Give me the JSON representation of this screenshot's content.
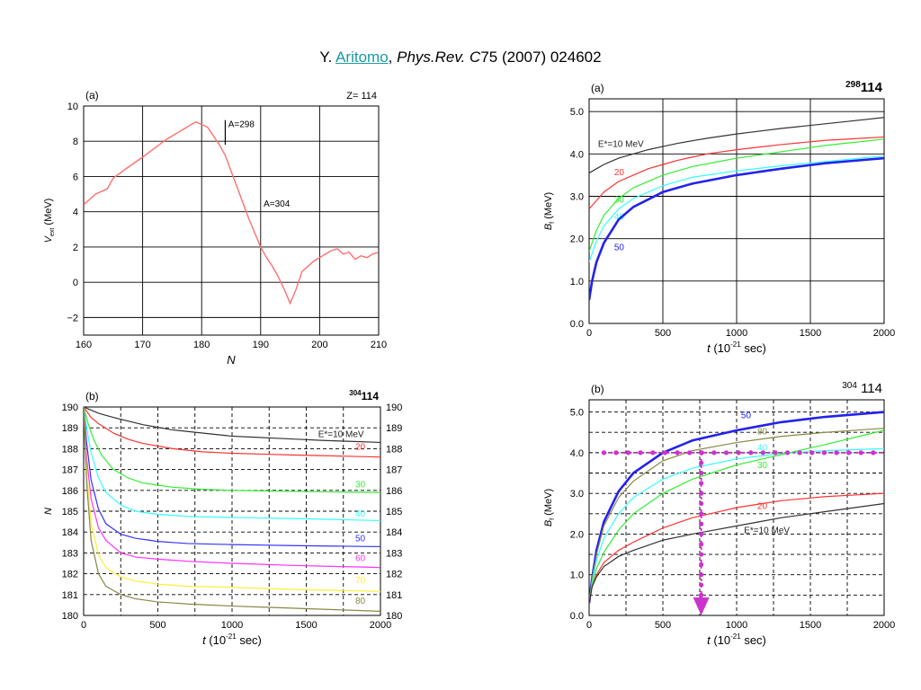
{
  "citation": {
    "prefix": "Y. ",
    "author": "Aritomo",
    "sep": ", ",
    "journal": "Phys.Rev. C",
    "rest": "75 (2007) 024602"
  },
  "panels": [
    {
      "name": "panel-a-vext",
      "tag": "(a)",
      "corner": "Z= 114",
      "corner_kind": "plain",
      "xlabel": "N",
      "ylabel_main": "V",
      "ylabel_sub": "ext",
      "ylabel_unit": "(MeV)",
      "xlim": [
        160,
        210
      ],
      "ylim": [
        -3,
        10
      ],
      "xticks": [
        160,
        170,
        180,
        190,
        200,
        210
      ],
      "yticks": [
        -2,
        0,
        2,
        4,
        6,
        8,
        10
      ],
      "ytick_decimals": 0,
      "grid_dashed": false,
      "annotations": [
        {
          "text": "A=298",
          "x": 184.5,
          "y": 8.8,
          "marker_x": 184,
          "marker_y": [
            7.8,
            9.2
          ]
        },
        {
          "text": "A=304",
          "x": 190.5,
          "y": 4.3
        }
      ]
    },
    {
      "name": "panel-b-neutron",
      "tag": "(b)",
      "corner_sup": "304",
      "corner_main": "114",
      "corner_kind": "nuclide",
      "xlabel": "t",
      "xlabel_unit": "(10",
      "xlabel_sup": "-21",
      "xlabel_tail": " sec)",
      "ylabel_main": "N",
      "xlim": [
        0,
        2000
      ],
      "ylim": [
        180,
        190
      ],
      "xticks": [
        0,
        500,
        1000,
        1500,
        2000
      ],
      "yticks": [
        180,
        181,
        182,
        183,
        184,
        185,
        186,
        187,
        188,
        189,
        190
      ],
      "ytick_decimals": 0,
      "grid_dashed": true,
      "right_axis": true
    },
    {
      "name": "panel-a-barrier-298",
      "tag": "(a)",
      "corner_sup": "298",
      "corner_main": "114",
      "corner_kind": "nuclide-bold",
      "xlabel": "t",
      "xlabel_unit": "(10",
      "xlabel_sup": "-21",
      "xlabel_tail": " sec)",
      "ylabel_main": "B",
      "ylabel_sub": "f",
      "ylabel_unit": "(MeV)",
      "xlim": [
        0,
        2000
      ],
      "ylim": [
        0,
        5.3
      ],
      "xticks": [
        0,
        500,
        1000,
        1500,
        2000
      ],
      "yticks": [
        0.0,
        1.0,
        2.0,
        3.0,
        4.0,
        5.0
      ],
      "ytick_decimals": 1,
      "grid_dashed": false
    },
    {
      "name": "panel-b-barrier-304",
      "tag": "(b)",
      "corner_sup": "304",
      "corner_main": " 114",
      "corner_kind": "nuclide-serif",
      "xlabel": "t",
      "xlabel_unit": "(10",
      "xlabel_sup": "-21",
      "xlabel_tail": " sec)",
      "ylabel_main": "B",
      "ylabel_sub": "f",
      "ylabel_unit": "(MeV)",
      "xlim": [
        0,
        2000
      ],
      "ylim": [
        0,
        5.3
      ],
      "xticks": [
        0,
        500,
        1000,
        1500,
        2000
      ],
      "yticks": [
        0.0,
        1.0,
        2.0,
        3.0,
        4.0,
        5.0
      ],
      "ytick_decimals": 1,
      "grid_dashed": true,
      "overlay": {
        "h_y": 4.0,
        "h_x": [
          100,
          2000
        ],
        "v_x": 760,
        "v_y": [
          4.0,
          0.0
        ],
        "color": "#cc33cc"
      }
    }
  ],
  "chart_data": [
    {
      "type": "line",
      "title": "",
      "xlabel": "N",
      "ylabel": "V_ext (MeV)",
      "xlim": [
        160,
        210
      ],
      "ylim": [
        -3,
        10
      ],
      "grid": true,
      "series": [
        {
          "color": "#ff6f6f",
          "x": [
            160,
            162,
            164,
            165,
            167,
            170,
            172,
            174,
            176,
            178,
            179,
            181,
            182,
            183,
            184,
            185,
            186,
            187,
            188,
            189,
            190,
            191,
            192,
            193,
            194,
            195,
            196,
            197,
            198,
            199,
            200,
            202,
            203,
            204,
            205,
            206,
            207,
            208,
            209,
            210
          ],
          "y": [
            4.4,
            5.0,
            5.3,
            5.9,
            6.4,
            7.1,
            7.6,
            8.1,
            8.5,
            8.9,
            9.1,
            8.8,
            8.3,
            7.8,
            7.2,
            6.3,
            5.4,
            4.5,
            3.6,
            2.8,
            2.0,
            1.4,
            0.9,
            0.3,
            -0.4,
            -1.2,
            -0.4,
            0.6,
            0.9,
            1.2,
            1.4,
            1.8,
            1.9,
            1.6,
            1.7,
            1.3,
            1.5,
            1.4,
            1.6,
            1.7
          ]
        }
      ],
      "annotations": [
        "A=298",
        "A=304"
      ]
    },
    {
      "type": "line",
      "title": "",
      "xlabel": "t (10^-21 sec)",
      "ylabel": "N",
      "xlim": [
        0,
        2000
      ],
      "ylim": [
        180,
        190
      ],
      "grid": true,
      "series": [
        {
          "name": "E*=10 MeV",
          "label": "E*=10 MeV",
          "label_x": 1580,
          "label_y": 188.55,
          "color": "#333333",
          "x": [
            0,
            100,
            200,
            400,
            600,
            800,
            1000,
            1300,
            1600,
            2000
          ],
          "y": [
            190,
            189.7,
            189.5,
            189.15,
            188.9,
            188.75,
            188.6,
            188.5,
            188.4,
            188.3
          ]
        },
        {
          "name": "20",
          "label": "20",
          "label_x": 1830,
          "label_y": 187.95,
          "color": "#ff3333",
          "x": [
            0,
            50,
            100,
            200,
            300,
            400,
            600,
            800,
            1000,
            1400,
            2000
          ],
          "y": [
            190,
            189.5,
            189.2,
            188.75,
            188.45,
            188.25,
            188.0,
            187.85,
            187.78,
            187.7,
            187.6
          ]
        },
        {
          "name": "30",
          "label": "30",
          "label_x": 1830,
          "label_y": 186.15,
          "color": "#33ee33",
          "x": [
            0,
            30,
            70,
            120,
            200,
            300,
            400,
            600,
            800,
            1000,
            1400,
            2000
          ],
          "y": [
            190,
            189.2,
            188.4,
            187.7,
            187.0,
            186.6,
            186.35,
            186.15,
            186.05,
            186.0,
            185.95,
            185.9
          ]
        },
        {
          "name": "40",
          "label": "40",
          "label_x": 1830,
          "label_y": 184.75,
          "color": "#33ffff",
          "x": [
            0,
            20,
            50,
            100,
            150,
            250,
            350,
            500,
            700,
            1000,
            1400,
            2000
          ],
          "y": [
            190,
            189.0,
            187.8,
            186.6,
            185.9,
            185.3,
            185.0,
            184.85,
            184.75,
            184.7,
            184.65,
            184.55
          ]
        },
        {
          "name": "50",
          "label": "50",
          "label_x": 1830,
          "label_y": 183.55,
          "color": "#3333ff",
          "x": [
            0,
            20,
            50,
            100,
            150,
            250,
            350,
            500,
            700,
            1000,
            1400,
            2000
          ],
          "y": [
            190,
            188.3,
            186.5,
            185.1,
            184.4,
            183.9,
            183.7,
            183.55,
            183.45,
            183.4,
            183.35,
            183.3
          ]
        },
        {
          "name": "60",
          "label": "60",
          "label_x": 1830,
          "label_y": 182.6,
          "color": "#ff33ff",
          "x": [
            0,
            20,
            50,
            100,
            150,
            250,
            350,
            500,
            700,
            1000,
            1400,
            2000
          ],
          "y": [
            190,
            187.6,
            185.6,
            184.2,
            183.6,
            183.0,
            182.8,
            182.7,
            182.6,
            182.5,
            182.4,
            182.3
          ]
        },
        {
          "name": "70",
          "label": "70",
          "label_x": 1830,
          "label_y": 181.55,
          "color": "#ffee33",
          "x": [
            0,
            20,
            50,
            100,
            150,
            250,
            350,
            500,
            700,
            1000,
            1400,
            2000
          ],
          "y": [
            190,
            187.0,
            184.4,
            182.9,
            182.3,
            181.85,
            181.65,
            181.5,
            181.4,
            181.35,
            181.25,
            181.15
          ]
        },
        {
          "name": "80",
          "label": "80",
          "label_x": 1830,
          "label_y": 180.55,
          "color": "#888844",
          "x": [
            0,
            20,
            50,
            100,
            150,
            250,
            350,
            500,
            700,
            1000,
            1400,
            2000
          ],
          "y": [
            190,
            186.4,
            183.6,
            182.0,
            181.4,
            181.0,
            180.8,
            180.65,
            180.55,
            180.45,
            180.35,
            180.2
          ]
        }
      ]
    },
    {
      "type": "line",
      "title": "",
      "xlabel": "t (10^-21 sec)",
      "ylabel": "B_f (MeV)",
      "xlim": [
        0,
        2000
      ],
      "ylim": [
        0,
        5.3
      ],
      "grid": true,
      "series": [
        {
          "name": "E*=10 MeV",
          "label": "E*=10 MeV",
          "label_x": 60,
          "label_y": 4.17,
          "color": "#333333",
          "x": [
            0,
            100,
            200,
            400,
            600,
            800,
            1000,
            1300,
            1600,
            2000
          ],
          "y": [
            3.55,
            3.75,
            3.9,
            4.1,
            4.25,
            4.37,
            4.47,
            4.6,
            4.71,
            4.86
          ]
        },
        {
          "name": "20",
          "label": "20",
          "label_x": 170,
          "label_y": 3.5,
          "color": "#ff3333",
          "x": [
            0,
            100,
            200,
            400,
            600,
            800,
            1000,
            1300,
            1600,
            2000
          ],
          "y": [
            2.7,
            3.1,
            3.35,
            3.65,
            3.85,
            4.0,
            4.1,
            4.22,
            4.32,
            4.4
          ]
        },
        {
          "name": "30",
          "label": "30",
          "label_x": 170,
          "label_y": 2.85,
          "color": "#33ee33",
          "x": [
            0,
            50,
            100,
            200,
            300,
            500,
            700,
            1000,
            1300,
            1600,
            2000
          ],
          "y": [
            1.7,
            2.2,
            2.55,
            2.95,
            3.2,
            3.5,
            3.7,
            3.9,
            4.05,
            4.2,
            4.35
          ]
        },
        {
          "name": "40",
          "label": "40",
          "label_x": 170,
          "label_y": 2.45,
          "color": "#33ffff",
          "x": [
            0,
            50,
            100,
            200,
            300,
            500,
            700,
            1000,
            1300,
            1600,
            2000
          ],
          "y": [
            1.45,
            1.95,
            2.3,
            2.7,
            2.95,
            3.25,
            3.45,
            3.6,
            3.72,
            3.82,
            3.95
          ]
        },
        {
          "name": "50",
          "label": "50",
          "label_x": 170,
          "label_y": 1.73,
          "color": "#2222ee",
          "x": [
            0,
            20,
            50,
            100,
            200,
            300,
            500,
            700,
            1000,
            1300,
            1600,
            2000
          ],
          "y": [
            0.55,
            1.0,
            1.45,
            1.9,
            2.45,
            2.75,
            3.1,
            3.3,
            3.5,
            3.65,
            3.78,
            3.9
          ]
        }
      ]
    },
    {
      "type": "line",
      "title": "",
      "xlabel": "t (10^-21 sec)",
      "ylabel": "B_f (MeV)",
      "xlim": [
        0,
        2000
      ],
      "ylim": [
        0,
        5.3
      ],
      "grid": true,
      "series": [
        {
          "name": "50",
          "label": "50",
          "label_x": 1030,
          "label_y": 4.85,
          "color": "#2222ee",
          "x": [
            0,
            20,
            50,
            100,
            200,
            300,
            500,
            700,
            1000,
            1300,
            1600,
            2000
          ],
          "y": [
            0.3,
            0.9,
            1.6,
            2.3,
            3.05,
            3.5,
            4.0,
            4.3,
            4.55,
            4.75,
            4.88,
            5.0
          ]
        },
        {
          "name": "80",
          "label": "80",
          "label_x": 1140,
          "label_y": 4.45,
          "color": "#888844",
          "x": [
            0,
            20,
            50,
            100,
            200,
            300,
            500,
            700,
            1000,
            1300,
            1600,
            2000
          ],
          "y": [
            0.3,
            0.9,
            1.5,
            2.2,
            2.9,
            3.3,
            3.8,
            4.05,
            4.25,
            4.4,
            4.5,
            4.6
          ]
        },
        {
          "name": "40",
          "label": "40",
          "label_x": 1140,
          "label_y": 4.05,
          "color": "#33ffff",
          "x": [
            0,
            20,
            50,
            100,
            200,
            300,
            500,
            700,
            1000,
            1300,
            1600,
            2000
          ],
          "y": [
            0.3,
            0.8,
            1.35,
            1.9,
            2.5,
            2.9,
            3.35,
            3.62,
            3.85,
            3.98,
            4.05,
            4.1
          ]
        },
        {
          "name": "30",
          "label": "30",
          "label_x": 1140,
          "label_y": 3.62,
          "color": "#33ee33",
          "x": [
            0,
            20,
            50,
            100,
            200,
            300,
            500,
            700,
            1000,
            1300,
            1600,
            2000
          ],
          "y": [
            0.3,
            0.75,
            1.15,
            1.55,
            2.1,
            2.5,
            3.0,
            3.35,
            3.7,
            3.95,
            4.2,
            4.55
          ]
        },
        {
          "name": "20",
          "label": "20",
          "label_x": 1140,
          "label_y": 2.62,
          "color": "#ff3333",
          "x": [
            0,
            20,
            50,
            100,
            200,
            300,
            500,
            700,
            1000,
            1300,
            1600,
            2000
          ],
          "y": [
            0.3,
            0.7,
            1.0,
            1.3,
            1.6,
            1.8,
            2.15,
            2.4,
            2.65,
            2.82,
            2.92,
            3.0
          ]
        },
        {
          "name": "E*=10 MeV",
          "label": "E*=10 MeV",
          "label_x": 1050,
          "label_y": 2.02,
          "color": "#333333",
          "x": [
            0,
            20,
            50,
            100,
            200,
            300,
            500,
            700,
            1000,
            1300,
            1600,
            2000
          ],
          "y": [
            0.3,
            0.7,
            0.95,
            1.2,
            1.45,
            1.6,
            1.85,
            2.0,
            2.2,
            2.4,
            2.55,
            2.75
          ]
        }
      ]
    }
  ]
}
